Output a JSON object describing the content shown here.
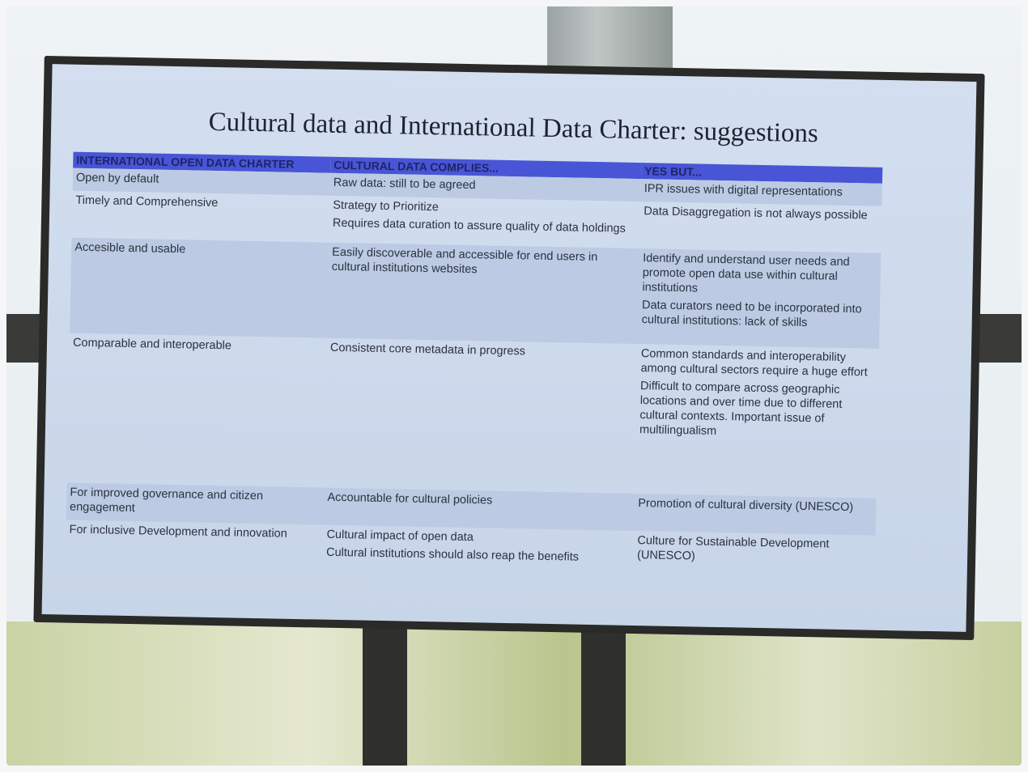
{
  "slide": {
    "title": "Cultural data and International Data Charter: suggestions",
    "table": {
      "header": [
        "INTERNATIONAL OPEN DATA CHARTER",
        "CULTURAL DATA COMPLIES...",
        "YES BUT..."
      ],
      "rows": [
        [
          [
            "Open by default"
          ],
          [
            "Raw data: still to be agreed"
          ],
          [
            "IPR issues with digital representations"
          ]
        ],
        [
          [
            "Timely and Comprehensive"
          ],
          [
            "Strategy to Prioritize",
            "Requires data curation to assure quality of data holdings"
          ],
          [
            "Data Disaggregation is not always possible"
          ]
        ],
        [
          [
            "Accesible and usable"
          ],
          [
            "Easily discoverable and accessible for end users in cultural institutions websites"
          ],
          [
            "Identify and understand user needs and promote open data use within cultural institutions",
            "Data curators need to be incorporated into cultural institutions: lack of skills"
          ]
        ],
        [
          [
            "Comparable and interoperable"
          ],
          [
            "Consistent core metadata in progress"
          ],
          [
            "Common standards and interoperability among cultural sectors require a huge effort",
            "Difficult to compare across geographic locations and over time due to different cultural contexts. Important issue of multilingualism"
          ]
        ],
        [
          [
            "For improved governance and citizen engagement"
          ],
          [
            "Accountable for cultural policies"
          ],
          [
            "Promotion of cultural diversity (UNESCO)"
          ]
        ],
        [
          [
            "For inclusive Development and innovation"
          ],
          [
            "Cultural impact of open data",
            "Cultural institutions should also reap the benefits"
          ],
          [
            "Culture for Sustainable Development (UNESCO)"
          ]
        ]
      ]
    }
  }
}
